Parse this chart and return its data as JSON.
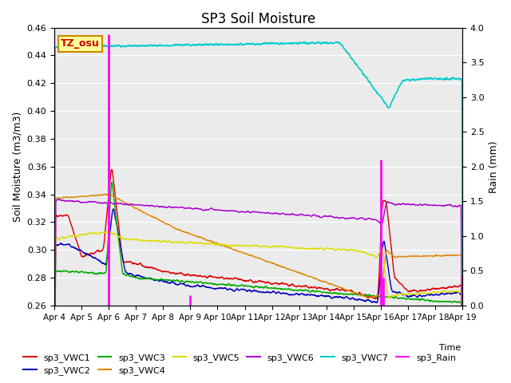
{
  "title": "SP3 Soil Moisture",
  "xlabel": "Time",
  "ylabel_left": "Soil Moisture (m3/m3)",
  "ylabel_right": "Rain (mm)",
  "ylim_left": [
    0.26,
    0.46
  ],
  "ylim_right": [
    0.0,
    4.0
  ],
  "xtick_labels": [
    "Apr 4",
    "Apr 5",
    "Apr 6",
    "Apr 7",
    "Apr 8",
    "Apr 9",
    "Apr 10",
    "Apr 11",
    "Apr 12",
    "Apr 13",
    "Apr 14",
    "Apr 15",
    "Apr 16",
    "Apr 17",
    "Apr 18",
    "Apr 19"
  ],
  "annotation_text": "TZ_osu",
  "annotation_color": "#cc0000",
  "annotation_bg": "#ffff99",
  "annotation_border": "#cc8800",
  "plot_bg": "#ebebeb",
  "fig_bg": "#ffffff",
  "series_colors": {
    "sp3_VWC1": "#dd0000",
    "sp3_VWC2": "#0000bb",
    "sp3_VWC3": "#00aa00",
    "sp3_VWC4": "#dd8800",
    "sp3_VWC5": "#dddd00",
    "sp3_VWC6": "#aa00cc",
    "sp3_VWC7": "#00cccc",
    "sp3_Rain": "#ff00ff"
  },
  "legend_order": [
    "sp3_VWC1",
    "sp3_VWC2",
    "sp3_VWC3",
    "sp3_VWC4",
    "sp3_VWC5",
    "sp3_VWC6",
    "sp3_VWC7",
    "sp3_Rain"
  ]
}
